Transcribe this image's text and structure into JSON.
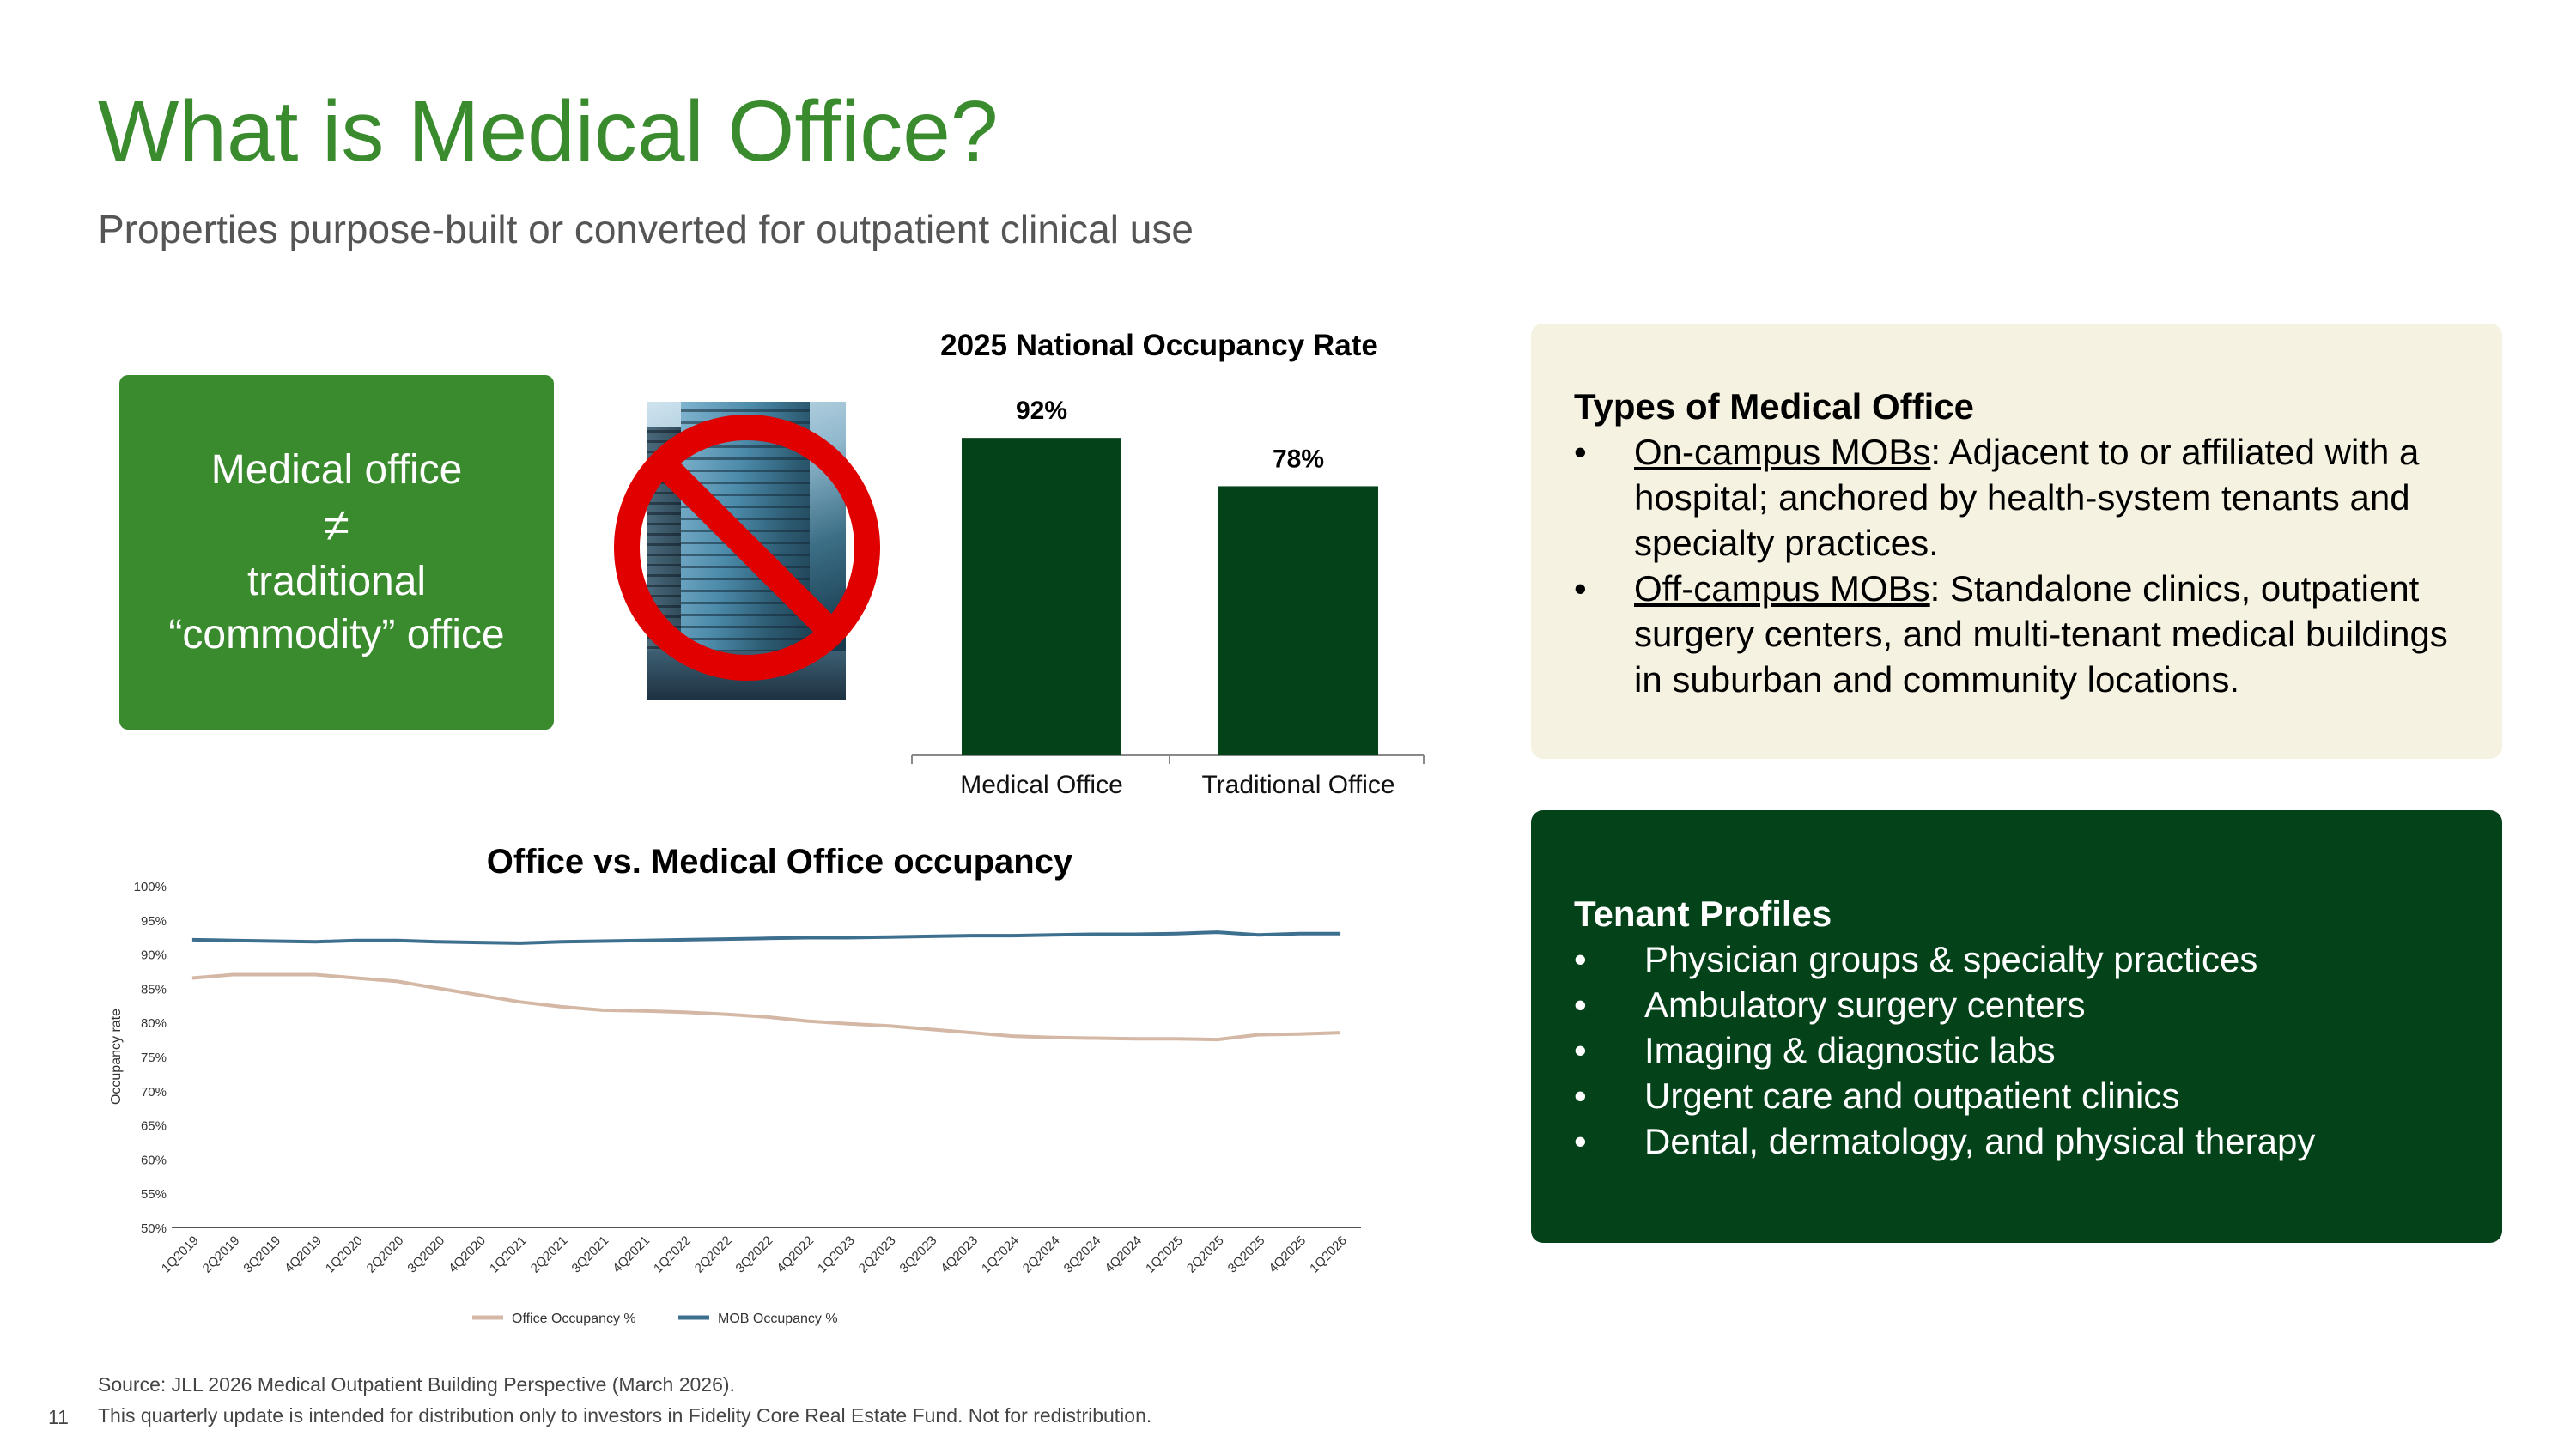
{
  "title": "What is Medical Office?",
  "subtitle": "Properties purpose-built or converted for outpatient clinical use",
  "callout": {
    "line1": "Medical office",
    "symbol": "≠",
    "line2": "traditional",
    "line3": "“commodity” office",
    "bg_color": "#3a8a2e"
  },
  "image": {
    "icon": "crossed-out-office-building-icon",
    "prohibition_color": "#e00000"
  },
  "types_box": {
    "heading": "Types of Medical Office",
    "items": [
      {
        "term": "On-campus MOBs",
        "text": ": Adjacent to or affiliated with a hospital; anchored by health-system tenants and specialty practices."
      },
      {
        "term": "Off-campus MOBs",
        "text": ": Standalone clinics, outpatient surgery centers, and multi-tenant medical buildings in suburban and community locations."
      }
    ],
    "bg_color": "#f5f2e1"
  },
  "tenant_box": {
    "heading": "Tenant Profiles",
    "items": [
      "Physician groups & specialty practices",
      "Ambulatory surgery centers",
      "Imaging & diagnostic labs",
      "Urgent care and outpatient clinics",
      "Dental, dermatology, and physical therapy"
    ],
    "bg_color": "#04421a"
  },
  "chart_data": [
    {
      "type": "bar",
      "title": "2025 National Occupancy Rate",
      "categories": [
        "Medical Office",
        "Traditional Office"
      ],
      "values": [
        92,
        78
      ],
      "data_labels": [
        "92%",
        "78%"
      ],
      "ylim": [
        0,
        100
      ],
      "bar_color": "#04421a",
      "grid": false,
      "legend": "none"
    },
    {
      "type": "line",
      "title": "Office vs. Medical Office occupancy",
      "ylabel": "Occupancy rate",
      "x": [
        "1Q2019",
        "2Q2019",
        "3Q2019",
        "4Q2019",
        "1Q2020",
        "2Q2020",
        "3Q2020",
        "4Q2020",
        "1Q2021",
        "2Q2021",
        "3Q2021",
        "4Q2021",
        "1Q2022",
        "2Q2022",
        "3Q2022",
        "4Q2022",
        "1Q2023",
        "2Q2023",
        "3Q2023",
        "4Q2023",
        "1Q2024",
        "2Q2024",
        "3Q2024",
        "4Q2024",
        "1Q2025",
        "2Q2025",
        "3Q2025",
        "4Q2025",
        "1Q2026"
      ],
      "yticks": [
        "50%",
        "55%",
        "60%",
        "65%",
        "70%",
        "75%",
        "80%",
        "85%",
        "90%",
        "95%",
        "100%"
      ],
      "ylim": [
        50,
        100
      ],
      "series": [
        {
          "name": "Office Occupancy %",
          "color": "#d4b8a5",
          "values": [
            86.5,
            87.0,
            87.0,
            87.0,
            86.5,
            86.0,
            85.0,
            84.0,
            83.0,
            82.3,
            81.8,
            81.7,
            81.5,
            81.2,
            80.8,
            80.2,
            79.8,
            79.5,
            79.0,
            78.5,
            78.0,
            77.8,
            77.7,
            77.6,
            77.6,
            77.5,
            78.2,
            78.3,
            78.5
          ]
        },
        {
          "name": "MOB Occupancy %",
          "color": "#3d6f8e",
          "values": [
            92.1,
            92.0,
            91.9,
            91.8,
            92.0,
            92.0,
            91.8,
            91.7,
            91.6,
            91.8,
            91.9,
            92.0,
            92.1,
            92.2,
            92.3,
            92.4,
            92.4,
            92.5,
            92.6,
            92.7,
            92.7,
            92.8,
            92.9,
            92.9,
            93.0,
            93.2,
            92.8,
            93.0,
            93.0
          ]
        }
      ],
      "grid": false,
      "legend": "bottom"
    }
  ],
  "footer": {
    "source": "Source: JLL 2026 Medical Outpatient Building Perspective (March 2026).",
    "disclaimer": "This quarterly update is intended for distribution only to investors in Fidelity Core Real Estate Fund. Not for redistribution.",
    "page_number": "11"
  }
}
